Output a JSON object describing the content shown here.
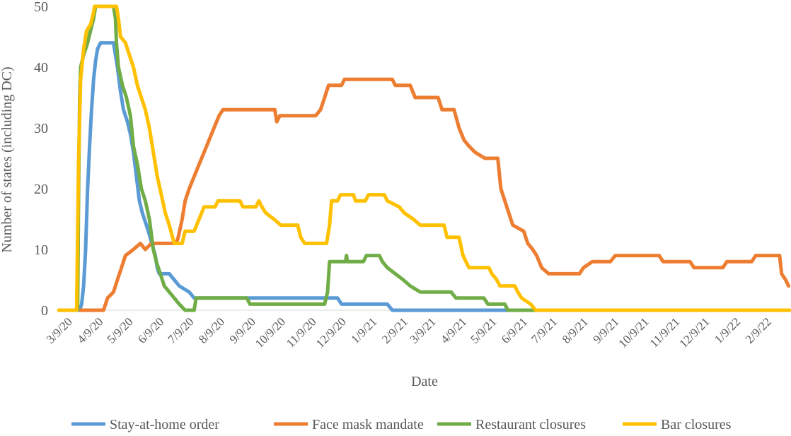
{
  "chart_data": {
    "type": "line",
    "title": "",
    "xlabel": "Date",
    "ylabel": "Number of states (including DC)",
    "xlim": [
      "2020-02-25",
      "2022-02-28"
    ],
    "ylim": [
      0,
      50
    ],
    "yticks": [
      0,
      10,
      20,
      30,
      40,
      50
    ],
    "xticks": [
      "3/9/20",
      "4/9/20",
      "5/9/20",
      "6/9/20",
      "7/9/20",
      "8/9/20",
      "9/9/20",
      "10/9/20",
      "11/9/20",
      "12/9/20",
      "1/9/21",
      "2/9/21",
      "3/9/21",
      "4/9/21",
      "5/9/21",
      "6/9/21",
      "7/9/21",
      "8/9/21",
      "9/9/21",
      "10/9/21",
      "11/9/21",
      "12/9/21",
      "1/9/22",
      "2/9/22"
    ],
    "grid": false,
    "legend": "bottom",
    "series": [
      {
        "name": "Stay-at-home order",
        "color": "#5B9BD5",
        "points": [
          [
            "2020-03-17",
            0
          ],
          [
            "2020-03-19",
            1
          ],
          [
            "2020-03-21",
            4
          ],
          [
            "2020-03-23",
            10
          ],
          [
            "2020-03-25",
            20
          ],
          [
            "2020-03-27",
            27
          ],
          [
            "2020-03-29",
            33
          ],
          [
            "2020-03-31",
            38
          ],
          [
            "2020-04-02",
            41
          ],
          [
            "2020-04-04",
            43
          ],
          [
            "2020-04-07",
            44
          ],
          [
            "2020-04-10",
            44
          ],
          [
            "2020-04-20",
            44
          ],
          [
            "2020-04-24",
            40
          ],
          [
            "2020-04-27",
            36
          ],
          [
            "2020-04-30",
            33
          ],
          [
            "2020-05-04",
            31
          ],
          [
            "2020-05-07",
            29
          ],
          [
            "2020-05-10",
            26
          ],
          [
            "2020-05-13",
            22
          ],
          [
            "2020-05-16",
            18
          ],
          [
            "2020-05-19",
            16
          ],
          [
            "2020-05-25",
            13
          ],
          [
            "2020-06-01",
            9
          ],
          [
            "2020-06-03",
            7
          ],
          [
            "2020-06-05",
            6
          ],
          [
            "2020-06-15",
            6
          ],
          [
            "2020-06-20",
            5
          ],
          [
            "2020-06-25",
            4
          ],
          [
            "2020-07-05",
            3
          ],
          [
            "2020-07-10",
            2
          ],
          [
            "2020-09-01",
            2
          ],
          [
            "2020-12-01",
            2
          ],
          [
            "2020-12-05",
            1
          ],
          [
            "2021-01-20",
            1
          ],
          [
            "2021-01-25",
            0
          ],
          [
            "2022-02-28",
            0
          ]
        ]
      },
      {
        "name": "Face mask mandate",
        "color": "#ED7D31",
        "points": [
          [
            "2020-03-18",
            0
          ],
          [
            "2020-04-10",
            0
          ],
          [
            "2020-04-14",
            2
          ],
          [
            "2020-04-20",
            3
          ],
          [
            "2020-04-24",
            5
          ],
          [
            "2020-04-28",
            7
          ],
          [
            "2020-05-02",
            9
          ],
          [
            "2020-05-10",
            10
          ],
          [
            "2020-05-17",
            11
          ],
          [
            "2020-05-22",
            10
          ],
          [
            "2020-05-28",
            11
          ],
          [
            "2020-06-22",
            11
          ],
          [
            "2020-06-24",
            12
          ],
          [
            "2020-06-28",
            15
          ],
          [
            "2020-07-01",
            18
          ],
          [
            "2020-07-05",
            20
          ],
          [
            "2020-07-10",
            22
          ],
          [
            "2020-07-15",
            24
          ],
          [
            "2020-07-20",
            26
          ],
          [
            "2020-07-25",
            28
          ],
          [
            "2020-07-30",
            30
          ],
          [
            "2020-08-04",
            32
          ],
          [
            "2020-08-08",
            33
          ],
          [
            "2020-09-01",
            33
          ],
          [
            "2020-09-29",
            33
          ],
          [
            "2020-10-01",
            31
          ],
          [
            "2020-10-04",
            32
          ],
          [
            "2020-11-09",
            32
          ],
          [
            "2020-11-14",
            33
          ],
          [
            "2020-11-18",
            35
          ],
          [
            "2020-11-22",
            37
          ],
          [
            "2020-12-05",
            37
          ],
          [
            "2020-12-08",
            38
          ],
          [
            "2021-01-25",
            38
          ],
          [
            "2021-01-28",
            37
          ],
          [
            "2021-02-12",
            37
          ],
          [
            "2021-02-17",
            35
          ],
          [
            "2021-03-12",
            35
          ],
          [
            "2021-03-16",
            33
          ],
          [
            "2021-03-28",
            33
          ],
          [
            "2021-04-02",
            30
          ],
          [
            "2021-04-07",
            28
          ],
          [
            "2021-04-12",
            27
          ],
          [
            "2021-04-18",
            26
          ],
          [
            "2021-04-28",
            25
          ],
          [
            "2021-05-11",
            25
          ],
          [
            "2021-05-14",
            20
          ],
          [
            "2021-05-18",
            18
          ],
          [
            "2021-05-22",
            16
          ],
          [
            "2021-05-26",
            14
          ],
          [
            "2021-06-06",
            13
          ],
          [
            "2021-06-10",
            11
          ],
          [
            "2021-06-15",
            10
          ],
          [
            "2021-06-19",
            9
          ],
          [
            "2021-06-24",
            7
          ],
          [
            "2021-07-01",
            6
          ],
          [
            "2021-08-01",
            6
          ],
          [
            "2021-08-05",
            7
          ],
          [
            "2021-08-14",
            8
          ],
          [
            "2021-09-01",
            8
          ],
          [
            "2021-09-06",
            9
          ],
          [
            "2021-10-20",
            9
          ],
          [
            "2021-10-24",
            8
          ],
          [
            "2021-11-20",
            8
          ],
          [
            "2021-11-24",
            7
          ],
          [
            "2021-12-23",
            7
          ],
          [
            "2021-12-27",
            8
          ],
          [
            "2022-01-21",
            8
          ],
          [
            "2022-01-25",
            9
          ],
          [
            "2022-02-18",
            9
          ],
          [
            "2022-02-20",
            6
          ],
          [
            "2022-02-24",
            5
          ],
          [
            "2022-02-27",
            4
          ]
        ]
      },
      {
        "name": "Restaurant closures",
        "color": "#70AD47",
        "points": [
          [
            "2020-03-15",
            0
          ],
          [
            "2020-03-16",
            20
          ],
          [
            "2020-03-17",
            35
          ],
          [
            "2020-03-18",
            40
          ],
          [
            "2020-03-21",
            42
          ],
          [
            "2020-03-25",
            44
          ],
          [
            "2020-03-28",
            46
          ],
          [
            "2020-03-31",
            48
          ],
          [
            "2020-04-02",
            50
          ],
          [
            "2020-04-20",
            50
          ],
          [
            "2020-04-22",
            48
          ],
          [
            "2020-04-23",
            44
          ],
          [
            "2020-04-25",
            40
          ],
          [
            "2020-04-29",
            37
          ],
          [
            "2020-05-03",
            35
          ],
          [
            "2020-05-07",
            32
          ],
          [
            "2020-05-10",
            27
          ],
          [
            "2020-05-14",
            24
          ],
          [
            "2020-05-18",
            20
          ],
          [
            "2020-05-22",
            18
          ],
          [
            "2020-05-26",
            15
          ],
          [
            "2020-05-30",
            10
          ],
          [
            "2020-06-02",
            8
          ],
          [
            "2020-06-06",
            6
          ],
          [
            "2020-06-10",
            4
          ],
          [
            "2020-06-15",
            3
          ],
          [
            "2020-06-20",
            2
          ],
          [
            "2020-06-25",
            1
          ],
          [
            "2020-07-01",
            0
          ],
          [
            "2020-07-10",
            0
          ],
          [
            "2020-07-12",
            2
          ],
          [
            "2020-09-01",
            2
          ],
          [
            "2020-09-04",
            1
          ],
          [
            "2020-11-18",
            1
          ],
          [
            "2020-11-21",
            3
          ],
          [
            "2020-11-23",
            8
          ],
          [
            "2020-12-09",
            8
          ],
          [
            "2020-12-10",
            9
          ],
          [
            "2020-12-11",
            8
          ],
          [
            "2020-12-27",
            8
          ],
          [
            "2020-12-30",
            9
          ],
          [
            "2021-01-12",
            9
          ],
          [
            "2021-01-15",
            8
          ],
          [
            "2021-01-20",
            7
          ],
          [
            "2021-01-28",
            6
          ],
          [
            "2021-02-05",
            5
          ],
          [
            "2021-02-12",
            4
          ],
          [
            "2021-02-22",
            3
          ],
          [
            "2021-03-25",
            3
          ],
          [
            "2021-03-30",
            2
          ],
          [
            "2021-04-27",
            2
          ],
          [
            "2021-05-01",
            1
          ],
          [
            "2021-05-18",
            1
          ],
          [
            "2021-05-21",
            0
          ],
          [
            "2022-02-28",
            0
          ]
        ]
      },
      {
        "name": "Bar closures",
        "color": "#FFC000",
        "points": [
          [
            "2020-02-25",
            0
          ],
          [
            "2020-03-14",
            0
          ],
          [
            "2020-03-16",
            25
          ],
          [
            "2020-03-18",
            38
          ],
          [
            "2020-03-21",
            43
          ],
          [
            "2020-03-24",
            46
          ],
          [
            "2020-03-28",
            47
          ],
          [
            "2020-03-31",
            49
          ],
          [
            "2020-04-01",
            50
          ],
          [
            "2020-04-23",
            50
          ],
          [
            "2020-04-25",
            48
          ],
          [
            "2020-04-27",
            45
          ],
          [
            "2020-05-02",
            44
          ],
          [
            "2020-05-06",
            42
          ],
          [
            "2020-05-10",
            40
          ],
          [
            "2020-05-14",
            37
          ],
          [
            "2020-05-18",
            35
          ],
          [
            "2020-05-22",
            33
          ],
          [
            "2020-05-26",
            30
          ],
          [
            "2020-05-30",
            26
          ],
          [
            "2020-06-03",
            22
          ],
          [
            "2020-06-07",
            19
          ],
          [
            "2020-06-11",
            16
          ],
          [
            "2020-06-15",
            14
          ],
          [
            "2020-06-20",
            11
          ],
          [
            "2020-06-28",
            11
          ],
          [
            "2020-07-01",
            13
          ],
          [
            "2020-07-10",
            13
          ],
          [
            "2020-07-15",
            15
          ],
          [
            "2020-07-20",
            17
          ],
          [
            "2020-07-31",
            17
          ],
          [
            "2020-08-03",
            18
          ],
          [
            "2020-08-25",
            18
          ],
          [
            "2020-08-28",
            17
          ],
          [
            "2020-09-10",
            17
          ],
          [
            "2020-09-13",
            18
          ],
          [
            "2020-09-16",
            17
          ],
          [
            "2020-09-20",
            16
          ],
          [
            "2020-09-28",
            15
          ],
          [
            "2020-10-05",
            14
          ],
          [
            "2020-10-22",
            14
          ],
          [
            "2020-10-25",
            12
          ],
          [
            "2020-10-29",
            11
          ],
          [
            "2020-11-20",
            11
          ],
          [
            "2020-11-23",
            14
          ],
          [
            "2020-11-25",
            18
          ],
          [
            "2020-12-01",
            18
          ],
          [
            "2020-12-04",
            19
          ],
          [
            "2020-12-17",
            19
          ],
          [
            "2020-12-19",
            18
          ],
          [
            "2020-12-29",
            18
          ],
          [
            "2021-01-01",
            19
          ],
          [
            "2021-01-17",
            19
          ],
          [
            "2021-01-20",
            18
          ],
          [
            "2021-02-01",
            17
          ],
          [
            "2021-02-06",
            16
          ],
          [
            "2021-02-15",
            15
          ],
          [
            "2021-02-22",
            14
          ],
          [
            "2021-03-18",
            14
          ],
          [
            "2021-03-21",
            12
          ],
          [
            "2021-04-02",
            12
          ],
          [
            "2021-04-06",
            9
          ],
          [
            "2021-04-12",
            7
          ],
          [
            "2021-05-02",
            7
          ],
          [
            "2021-05-05",
            6
          ],
          [
            "2021-05-10",
            5
          ],
          [
            "2021-05-13",
            4
          ],
          [
            "2021-05-28",
            4
          ],
          [
            "2021-05-31",
            3
          ],
          [
            "2021-06-04",
            2
          ],
          [
            "2021-06-13",
            1
          ],
          [
            "2021-06-18",
            0
          ],
          [
            "2022-02-28",
            0
          ]
        ]
      }
    ]
  }
}
